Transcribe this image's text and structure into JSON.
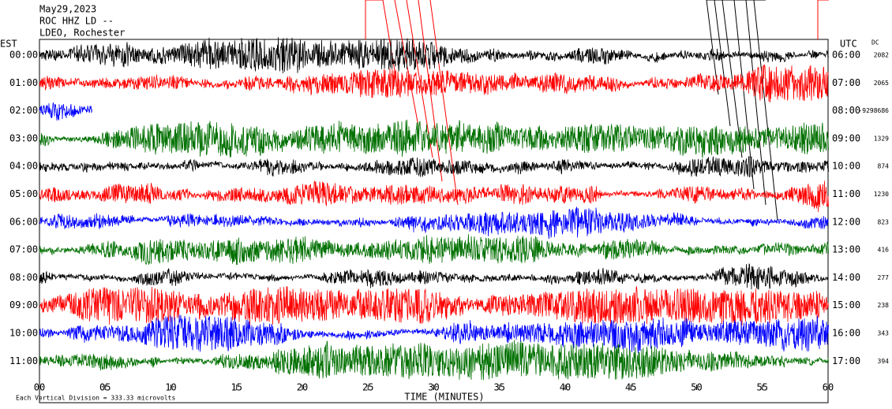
{
  "chart_data": {
    "type": "helicorder",
    "title_lines": [
      "May29,2023",
      "ROC HHZ LD --",
      "LDEO, Rochester"
    ],
    "left_axis_label": "EST",
    "right_axis_label": "UTC",
    "dc_label": "DC",
    "xlabel": "TIME (MINUTES)",
    "footer": "Each Vertical Division = 333.33 microvolts",
    "xlim": [
      0,
      60
    ],
    "xticks": [
      {
        "value": 0,
        "label": "00"
      },
      {
        "value": 5,
        "label": "05"
      },
      10,
      15,
      20,
      25,
      30,
      35,
      40,
      45,
      50,
      55,
      60
    ],
    "rows": [
      {
        "est": "00:00",
        "utc": "06:00",
        "dc": 2082,
        "color": "#000000"
      },
      {
        "est": "01:00",
        "utc": "07:00",
        "dc": 2065,
        "color": "#ff0000"
      },
      {
        "est": "02:00",
        "utc": "08:00",
        "dc": -9298686,
        "color": "#0000ff",
        "trace_end_minute": 4
      },
      {
        "est": "03:00",
        "utc": "09:00",
        "dc": 1329,
        "color": "#007000"
      },
      {
        "est": "04:00",
        "utc": "10:00",
        "dc": 874,
        "color": "#000000"
      },
      {
        "est": "05:00",
        "utc": "11:00",
        "dc": 1230,
        "color": "#ff0000"
      },
      {
        "est": "06:00",
        "utc": "12:00",
        "dc": 823,
        "color": "#0000ff"
      },
      {
        "est": "07:00",
        "utc": "13:00",
        "dc": 416,
        "color": "#007000"
      },
      {
        "est": "08:00",
        "utc": "14:00",
        "dc": 277,
        "color": "#000000"
      },
      {
        "est": "09:00",
        "utc": "15:00",
        "dc": 238,
        "color": "#ff0000"
      },
      {
        "est": "10:00",
        "utc": "16:00",
        "dc": 343,
        "color": "#0000ff"
      },
      {
        "est": "11:00",
        "utc": "17:00",
        "dc": 394,
        "color": "#007000"
      }
    ]
  }
}
